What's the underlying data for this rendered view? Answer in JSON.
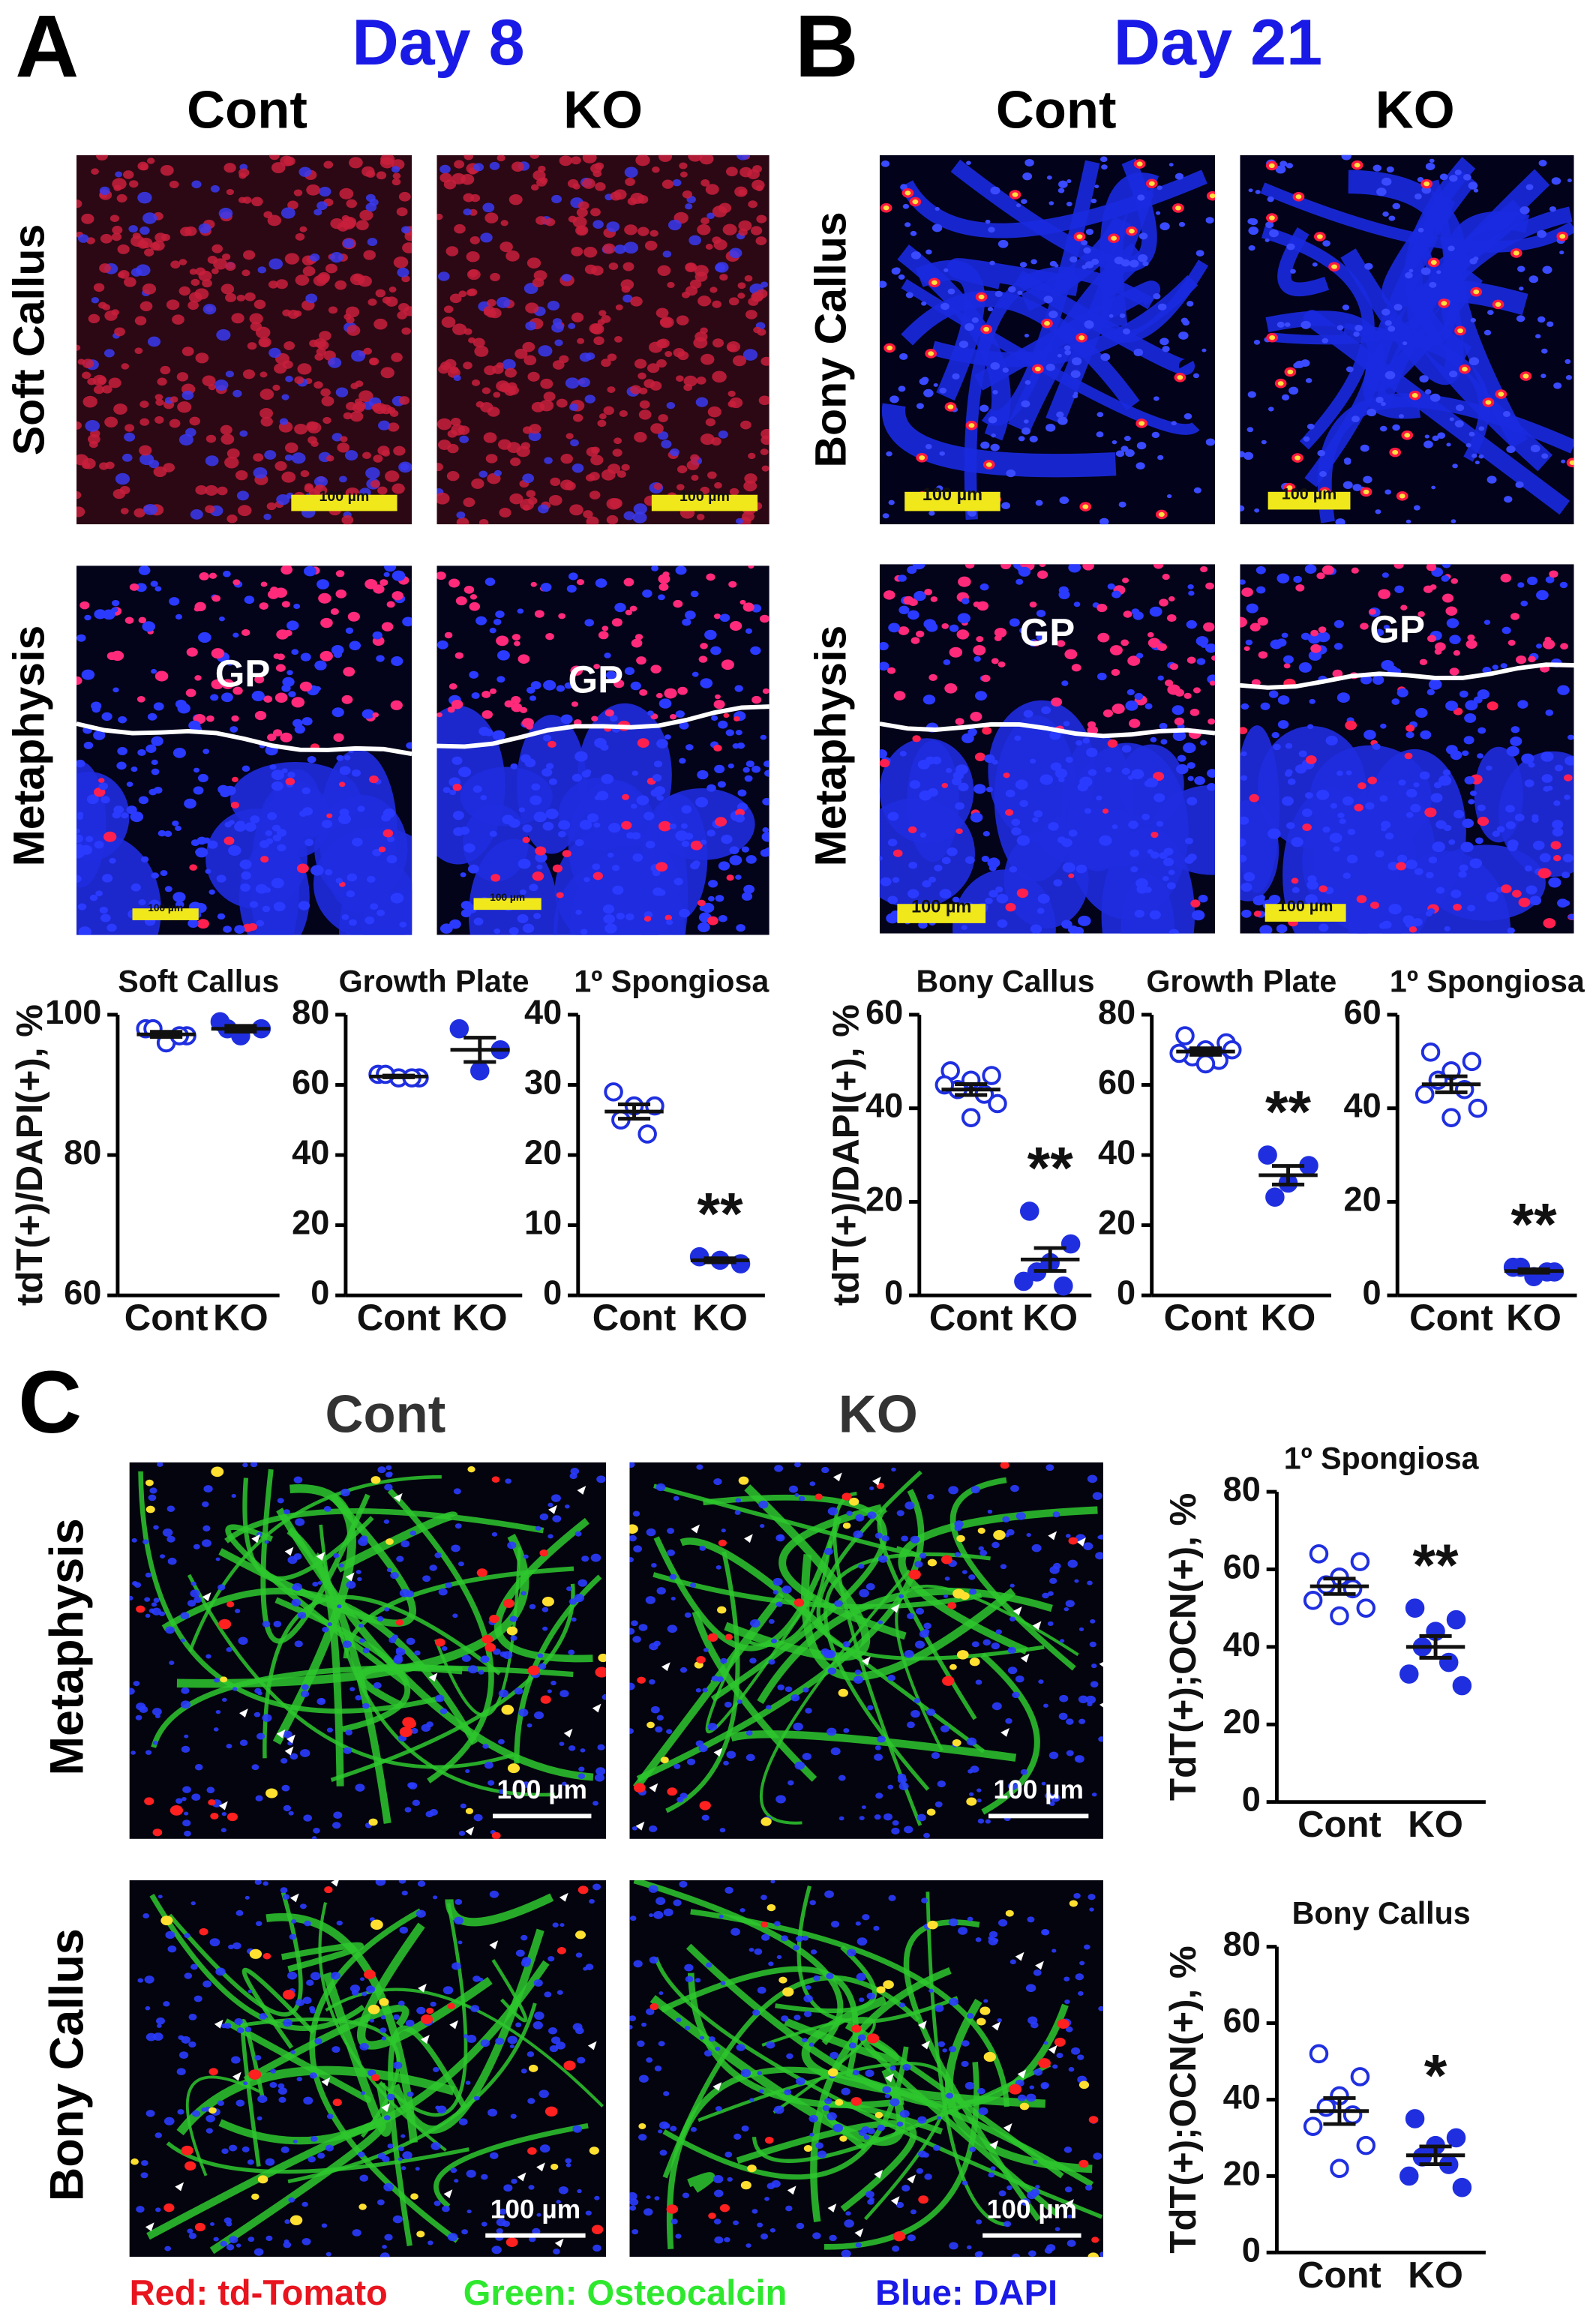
{
  "panels": {
    "A": {
      "letter": "A",
      "day": "Day 8",
      "columns": [
        "Cont",
        "KO"
      ],
      "rows": [
        "Soft Callus",
        "Metaphysis"
      ]
    },
    "B": {
      "letter": "B",
      "day": "Day 21",
      "columns": [
        "Cont",
        "KO"
      ],
      "rows": [
        "Bony Callus",
        "Metaphysis"
      ]
    },
    "C": {
      "letter": "C",
      "columns": [
        "Cont",
        "KO"
      ],
      "rows": [
        "Metaphysis",
        "Bony Callus"
      ]
    }
  },
  "gp_labels": [
    "GP",
    "GP",
    "GP",
    "GP"
  ],
  "scale_bar_labels": [
    "100 µm",
    "100 µm",
    "100 µm",
    "100 µm",
    "100 µm",
    "100 µm",
    "100 µm",
    "100 µm",
    "100 µm",
    "100 µm",
    "100 µm",
    "100 µm"
  ],
  "legend": [
    {
      "text": "Red: td-Tomato",
      "color": "#e8141e"
    },
    {
      "text": "Green: Osteocalcin",
      "color": "#2ee82e"
    },
    {
      "text": "Blue: DAPI",
      "color": "#1a1ae6"
    }
  ],
  "chart_data": [
    {
      "type": "strip",
      "title": "Soft Callus",
      "ylabel": "tdT(+)/DAPI(+), %",
      "ylim": [
        60,
        100
      ],
      "yticks": [
        60,
        80,
        100
      ],
      "series": [
        {
          "name": "Cont",
          "color": "#1f2fe0",
          "hollow": true,
          "values": [
            98,
            97,
            96,
            98,
            97
          ]
        },
        {
          "name": "KO",
          "color": "#1f2fe0",
          "hollow": false,
          "values": [
            99,
            98,
            97,
            98
          ]
        }
      ]
    },
    {
      "type": "strip",
      "title": "Growth Plate",
      "ylim": [
        0,
        80
      ],
      "yticks": [
        0,
        20,
        40,
        60,
        80
      ],
      "series": [
        {
          "name": "Cont",
          "color": "#1f2fe0",
          "hollow": true,
          "values": [
            63,
            62,
            62,
            63,
            62
          ]
        },
        {
          "name": "KO",
          "color": "#1f2fe0",
          "hollow": false,
          "values": [
            76,
            70,
            64
          ]
        }
      ]
    },
    {
      "type": "strip",
      "title": "1º Spongiosa",
      "ylim": [
        0,
        40
      ],
      "yticks": [
        0,
        10,
        20,
        30,
        40
      ],
      "annotation": "**",
      "series": [
        {
          "name": "Cont",
          "color": "#1f2fe0",
          "hollow": true,
          "values": [
            29,
            27,
            27,
            25,
            23
          ]
        },
        {
          "name": "KO",
          "color": "#1f2fe0",
          "hollow": false,
          "values": [
            5.5,
            4.5,
            5
          ]
        }
      ]
    },
    {
      "type": "strip",
      "title": "Bony Callus",
      "ylabel": "tdT(+)/DAPI(+), %",
      "ylim": [
        0,
        60
      ],
      "yticks": [
        0,
        20,
        40,
        60
      ],
      "annotation": "**",
      "series": [
        {
          "name": "Cont",
          "color": "#1f2fe0",
          "hollow": true,
          "values": [
            48,
            47,
            46,
            44,
            43,
            45,
            41,
            38
          ]
        },
        {
          "name": "KO",
          "color": "#1f2fe0",
          "hollow": false,
          "values": [
            18,
            11,
            7,
            5,
            2,
            3
          ]
        }
      ]
    },
    {
      "type": "strip",
      "title": "Growth Plate",
      "ylim": [
        0,
        80
      ],
      "yticks": [
        0,
        20,
        40,
        60,
        80
      ],
      "annotation": "**",
      "series": [
        {
          "name": "Cont",
          "color": "#1f2fe0",
          "hollow": true,
          "values": [
            74,
            72,
            70,
            68,
            67,
            69,
            70,
            66
          ]
        },
        {
          "name": "KO",
          "color": "#1f2fe0",
          "hollow": false,
          "values": [
            40,
            37,
            32,
            28
          ]
        }
      ]
    },
    {
      "type": "strip",
      "title": "1º Spongiosa",
      "ylim": [
        0,
        60
      ],
      "yticks": [
        0,
        20,
        40,
        60
      ],
      "annotation": "**",
      "series": [
        {
          "name": "Cont",
          "color": "#1f2fe0",
          "hollow": true,
          "values": [
            52,
            50,
            48,
            46,
            44,
            43,
            40,
            38
          ]
        },
        {
          "name": "KO",
          "color": "#1f2fe0",
          "hollow": false,
          "values": [
            6,
            5,
            4,
            6,
            5
          ]
        }
      ]
    },
    {
      "type": "strip",
      "title": "1º Spongiosa",
      "ylabel": "TdT(+);OCN(+), %",
      "ylim": [
        0,
        80
      ],
      "yticks": [
        0,
        20,
        40,
        60,
        80
      ],
      "annotation": "**",
      "series": [
        {
          "name": "Cont",
          "color": "#1f2fe0",
          "hollow": true,
          "values": [
            64,
            62,
            58,
            56,
            55,
            52,
            50,
            48
          ]
        },
        {
          "name": "KO",
          "color": "#1f2fe0",
          "hollow": false,
          "values": [
            50,
            47,
            44,
            40,
            36,
            33,
            30
          ]
        }
      ]
    },
    {
      "type": "strip",
      "title": "Bony Callus",
      "ylabel": "TdT(+);OCN(+), %",
      "ylim": [
        0,
        80
      ],
      "yticks": [
        0,
        20,
        40,
        60,
        80
      ],
      "annotation": "*",
      "series": [
        {
          "name": "Cont",
          "color": "#1f2fe0",
          "hollow": true,
          "values": [
            52,
            46,
            41,
            38,
            36,
            33,
            28,
            22
          ]
        },
        {
          "name": "KO",
          "color": "#1f2fe0",
          "hollow": false,
          "values": [
            35,
            30,
            28,
            25,
            23,
            20,
            17
          ]
        }
      ]
    }
  ]
}
